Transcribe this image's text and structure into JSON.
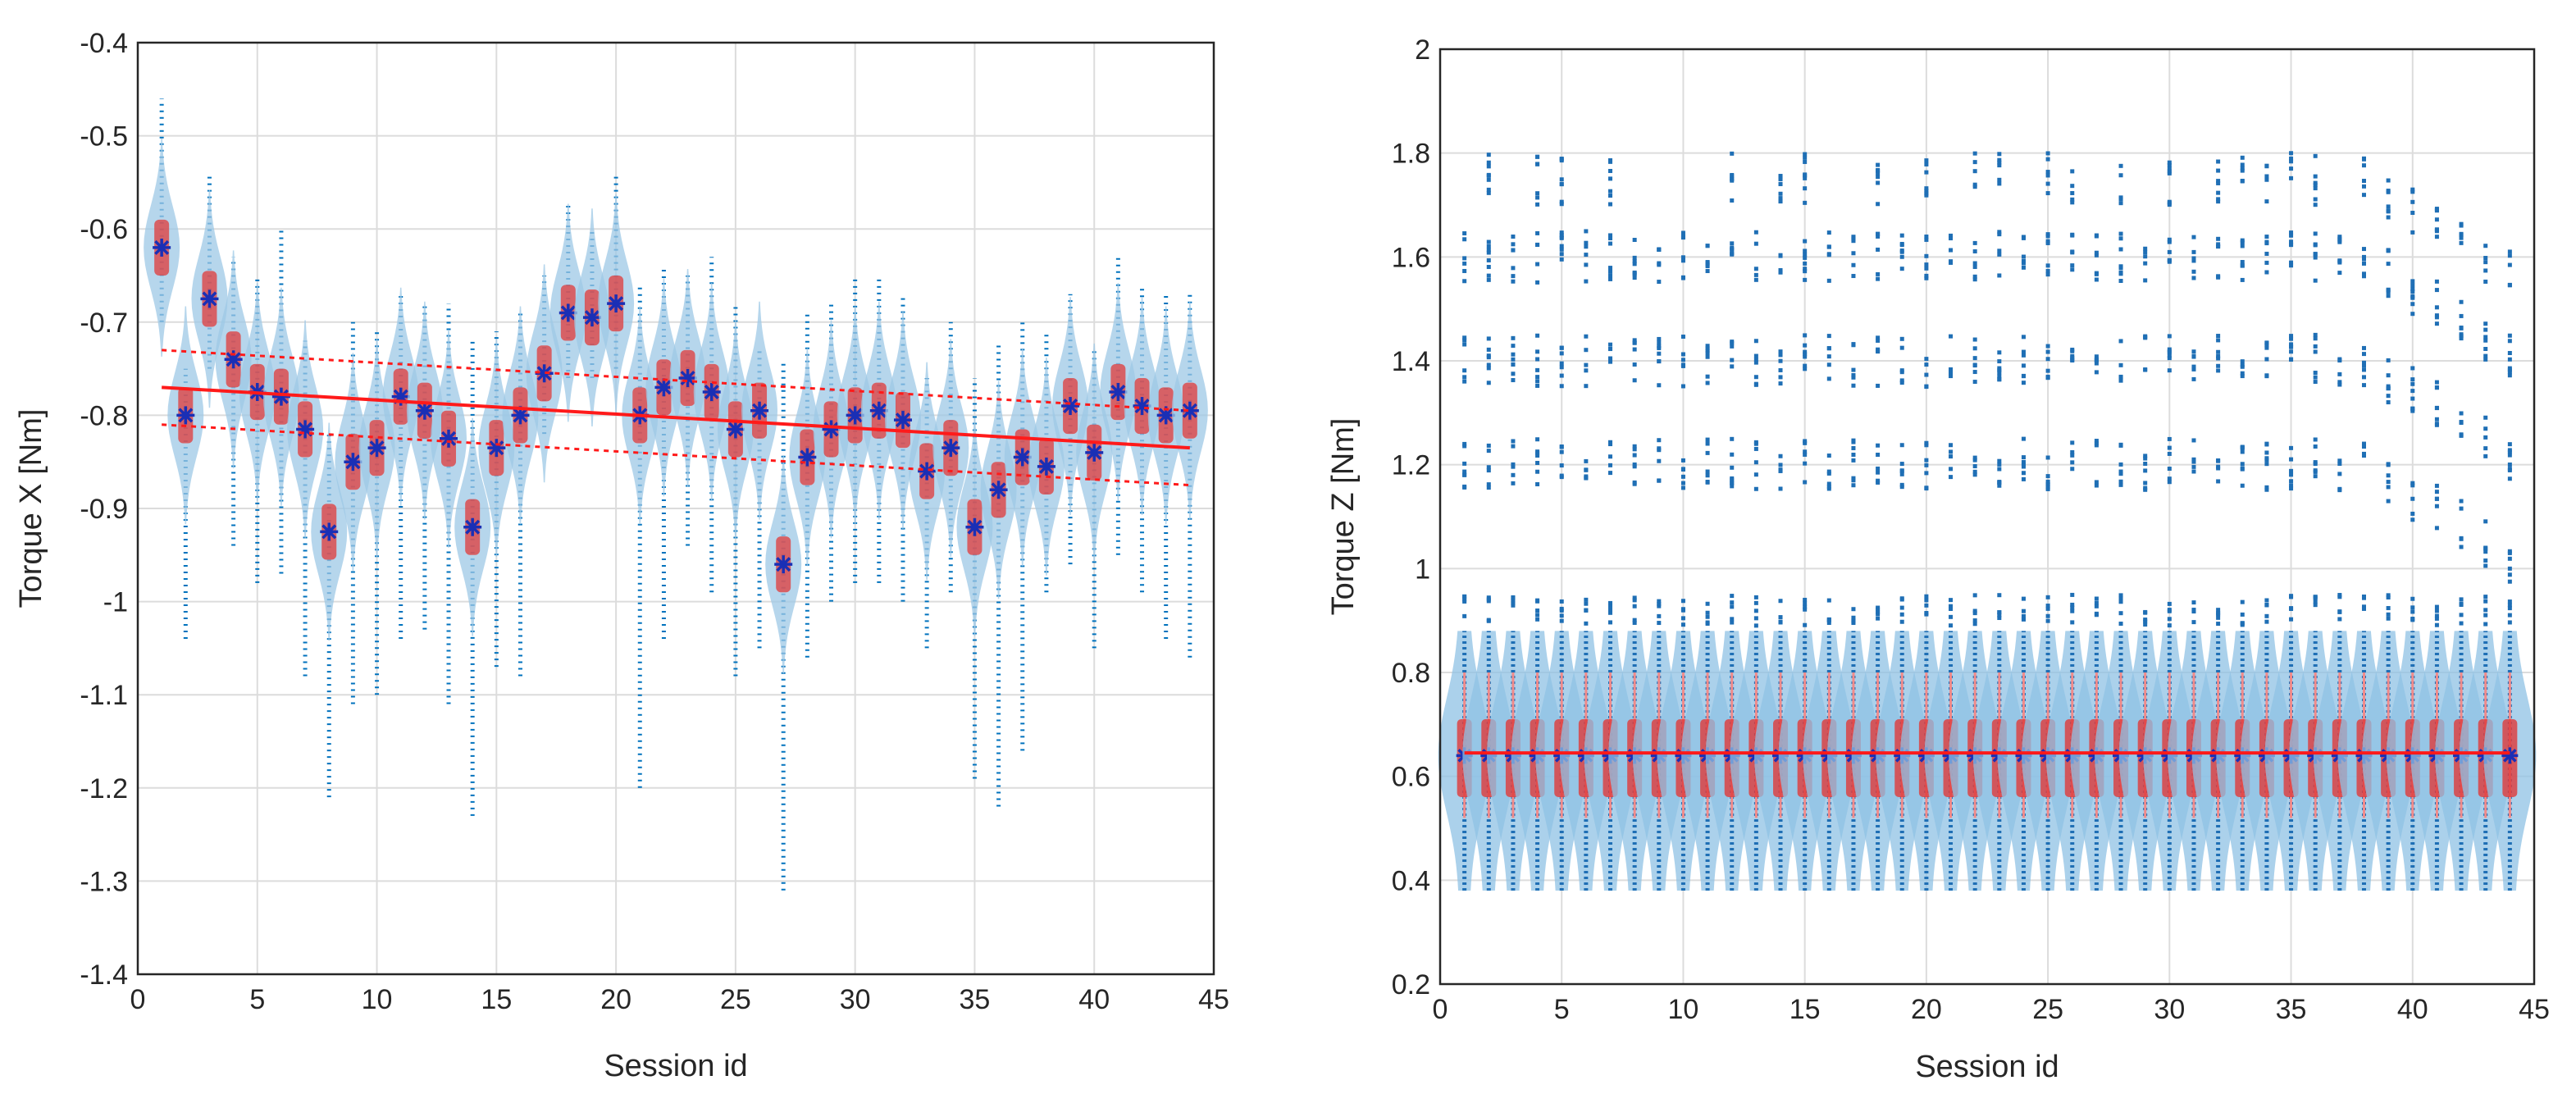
{
  "chart_data": [
    {
      "type": "violin",
      "xlabel": "Session id",
      "ylabel": "Torque X [Nm]",
      "xlim": [
        0,
        45
      ],
      "ylim": [
        -1.4,
        -0.4
      ],
      "xticks": [
        "0",
        "5",
        "10",
        "15",
        "20",
        "25",
        "30",
        "35",
        "40",
        "45"
      ],
      "yticks": [
        "-1.4",
        "-1.3",
        "-1.2",
        "-1.1",
        "-1",
        "-0.9",
        "-0.8",
        "-0.7",
        "-0.6",
        "-0.5",
        "-0.4"
      ],
      "grid": true,
      "series": [
        {
          "name": "median",
          "x": [
            1,
            2,
            3,
            4,
            5,
            6,
            7,
            8,
            9,
            10,
            11,
            12,
            13,
            14,
            15,
            16,
            17,
            18,
            19,
            20,
            21,
            22,
            23,
            24,
            25,
            26,
            27,
            28,
            29,
            30,
            31,
            32,
            33,
            34,
            35,
            36,
            37,
            38,
            39,
            40,
            41,
            42,
            43,
            44
          ],
          "values": [
            -0.62,
            -0.8,
            -0.675,
            -0.74,
            -0.775,
            -0.78,
            -0.815,
            -0.925,
            -0.85,
            -0.835,
            -0.78,
            -0.795,
            -0.825,
            -0.92,
            -0.835,
            -0.8,
            -0.755,
            -0.69,
            -0.695,
            -0.68,
            -0.8,
            -0.77,
            -0.76,
            -0.775,
            -0.815,
            -0.795,
            -0.96,
            -0.845,
            -0.815,
            -0.8,
            -0.795,
            -0.805,
            -0.86,
            -0.835,
            -0.92,
            -0.88,
            -0.845,
            -0.855,
            -0.79,
            -0.84,
            -0.775,
            -0.79,
            -0.8,
            -0.795
          ]
        },
        {
          "name": "sample-min",
          "values": [
            -0.7,
            -1.04,
            -0.75,
            -0.94,
            -0.98,
            -0.97,
            -1.08,
            -1.21,
            -1.11,
            -1.1,
            -1.04,
            -1.03,
            -1.11,
            -1.23,
            -1.07,
            -1.08,
            -0.82,
            -0.76,
            -0.76,
            -0.75,
            -1.2,
            -1.04,
            -0.94,
            -0.99,
            -1.08,
            -1.05,
            -1.31,
            -1.06,
            -1.0,
            -0.98,
            -0.98,
            -1.0,
            -1.05,
            -0.99,
            -1.19,
            -1.22,
            -1.16,
            -0.99,
            -0.96,
            -1.05,
            -0.95,
            -0.99,
            -1.04,
            -1.06
          ]
        },
        {
          "name": "sample-max",
          "values": [
            -0.46,
            -0.75,
            -0.54,
            -0.63,
            -0.65,
            -0.6,
            -0.72,
            -0.82,
            -0.7,
            -0.71,
            -0.67,
            -0.68,
            -0.68,
            -0.72,
            -0.71,
            -0.69,
            -0.65,
            -0.57,
            -0.6,
            -0.54,
            -0.66,
            -0.64,
            -0.65,
            -0.63,
            -0.68,
            -0.73,
            -0.74,
            -0.69,
            -0.68,
            -0.65,
            -0.65,
            -0.67,
            -0.76,
            -0.7,
            -0.76,
            -0.72,
            -0.7,
            -0.71,
            -0.67,
            -0.73,
            -0.63,
            -0.66,
            -0.67,
            -0.67
          ]
        },
        {
          "name": "trend",
          "x": [
            1,
            44
          ],
          "values": [
            -0.77,
            -0.835
          ]
        },
        {
          "name": "trend-upper",
          "x": [
            1,
            44
          ],
          "values": [
            -0.73,
            -0.795
          ]
        },
        {
          "name": "trend-lower",
          "x": [
            1,
            44
          ],
          "values": [
            -0.81,
            -0.875
          ]
        }
      ]
    },
    {
      "type": "violin",
      "xlabel": "Session id",
      "ylabel": "Torque Z [Nm]",
      "xlim": [
        0,
        45
      ],
      "ylim": [
        0.2,
        2
      ],
      "xticks": [
        "0",
        "5",
        "10",
        "15",
        "20",
        "25",
        "30",
        "35",
        "40",
        "45"
      ],
      "yticks": [
        "0.2",
        "0.4",
        "0.6",
        "0.8",
        "1",
        "1.2",
        "1.4",
        "1.6",
        "1.8",
        "2"
      ],
      "grid": true,
      "series": [
        {
          "name": "median",
          "x": [
            1,
            44
          ],
          "values": [
            0.64,
            0.64
          ]
        },
        {
          "name": "dense-range",
          "values": [
            0.38,
            0.88
          ]
        },
        {
          "name": "outlier-clusters",
          "values": [
            0.9,
            1.2,
            1.4,
            1.6,
            1.75
          ]
        },
        {
          "name": "trend",
          "x": [
            1,
            44
          ],
          "values": [
            0.645,
            0.645
          ]
        }
      ]
    }
  ]
}
